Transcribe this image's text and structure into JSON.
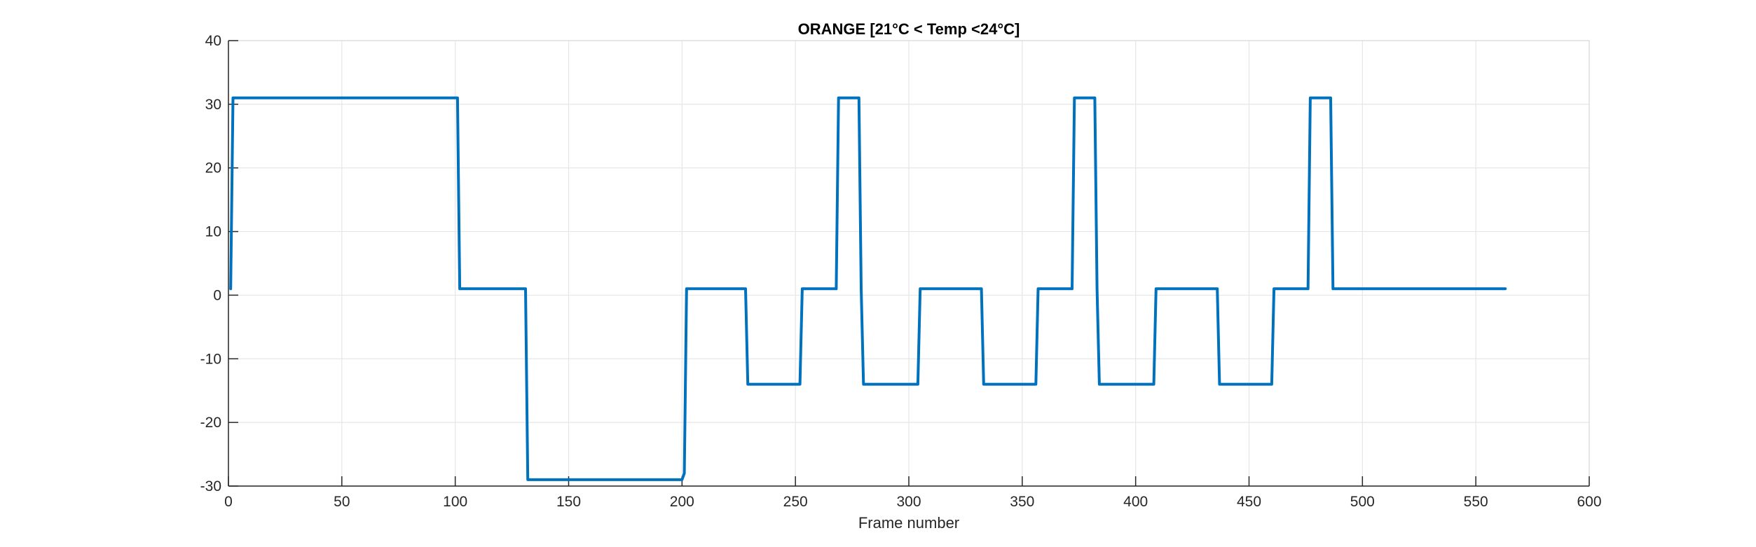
{
  "chart_data": {
    "type": "line",
    "title": "ORANGE [21°C < Temp <24°C]",
    "xlabel": "Frame number",
    "ylabel": "",
    "xlim": [
      0,
      600
    ],
    "ylim": [
      -30,
      40
    ],
    "xticks": [
      0,
      50,
      100,
      150,
      200,
      250,
      300,
      350,
      400,
      450,
      500,
      550,
      600
    ],
    "yticks": [
      -30,
      -20,
      -10,
      0,
      10,
      20,
      30,
      40
    ],
    "grid": true,
    "line_color": "#0072BD",
    "series": [
      {
        "x": [
          1,
          2,
          101,
          102,
          131,
          132,
          200,
          201,
          202,
          228,
          229,
          252,
          253,
          268,
          269,
          278,
          279,
          280,
          304,
          305,
          332,
          333,
          356,
          357,
          372,
          373,
          382,
          383,
          384,
          408,
          409,
          436,
          437,
          460,
          461,
          476,
          477,
          486,
          487,
          563
        ],
        "y": [
          1,
          31,
          31,
          1,
          1,
          -29,
          -29,
          -28,
          1,
          1,
          -14,
          -14,
          1,
          1,
          31,
          31,
          1,
          -14,
          -14,
          1,
          1,
          -14,
          -14,
          1,
          1,
          31,
          31,
          1,
          -14,
          -14,
          1,
          1,
          -14,
          -14,
          1,
          1,
          31,
          31,
          1,
          1
        ]
      }
    ]
  },
  "colors": {
    "grid": "#e6e6e6",
    "axis": "#262626",
    "line": "#0072BD"
  }
}
